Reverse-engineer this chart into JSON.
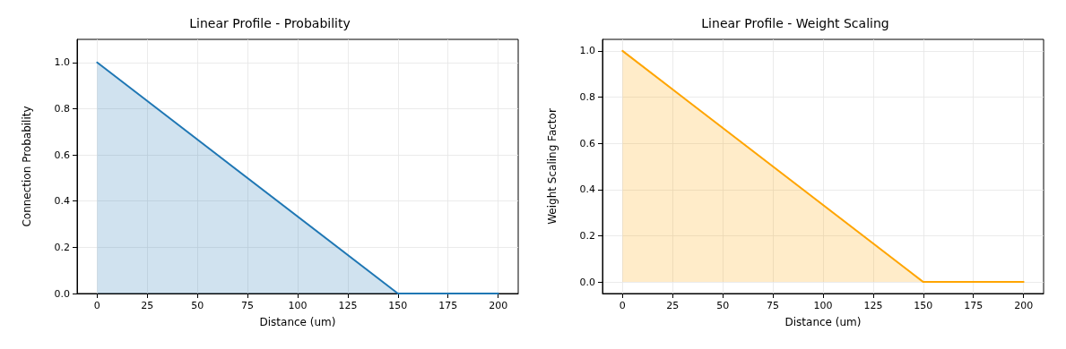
{
  "chart_data": [
    {
      "type": "area",
      "title": "Linear Profile - Probability",
      "xlabel": "Distance (um)",
      "ylabel": "Connection Probability",
      "x": [
        0,
        150,
        200
      ],
      "series": [
        {
          "color": "#1f77b4",
          "values": [
            1,
            0,
            0
          ]
        }
      ],
      "xlim": [
        -10,
        210
      ],
      "xticks": [
        0,
        25,
        50,
        75,
        100,
        125,
        150,
        175,
        200
      ],
      "ylim": [
        0,
        1.1
      ],
      "yticks": [
        {
          "value": 0,
          "label": "0.0"
        },
        {
          "value": 0.2,
          "label": "0.2"
        },
        {
          "value": 0.4,
          "label": "0.4"
        },
        {
          "value": 0.6,
          "label": "0.6"
        },
        {
          "value": 0.8,
          "label": "0.8"
        },
        {
          "value": 1,
          "label": "1.0"
        }
      ],
      "grid": true,
      "marker": "none",
      "line_style": "solid"
    },
    {
      "type": "area",
      "title": "Linear Profile - Weight Scaling",
      "xlabel": "Distance (um)",
      "ylabel": "Weight Scaling Factor",
      "x": [
        0,
        150,
        200
      ],
      "series": [
        {
          "color": "#ffa500",
          "values": [
            1,
            0,
            0
          ]
        }
      ],
      "xlim": [
        -10,
        210
      ],
      "xticks": [
        0,
        25,
        50,
        75,
        100,
        125,
        150,
        175,
        200
      ],
      "ylim": [
        -0.05,
        1.05
      ],
      "yticks": [
        {
          "value": 0,
          "label": "0.0"
        },
        {
          "value": 0.2,
          "label": "0.2"
        },
        {
          "value": 0.4,
          "label": "0.4"
        },
        {
          "value": 0.6,
          "label": "0.6"
        },
        {
          "value": 0.8,
          "label": "0.8"
        },
        {
          "value": 1,
          "label": "1.0"
        }
      ],
      "grid": true,
      "marker": "none",
      "line_style": "solid"
    }
  ]
}
